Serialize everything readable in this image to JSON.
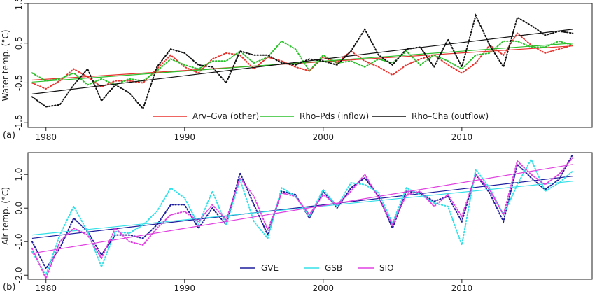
{
  "chart_data": [
    {
      "type": "line",
      "panel_label": "(a)",
      "ylabel": "Water temp. (°C)",
      "xlim": [
        1978.7,
        2019.4
      ],
      "ylim": [
        -1.62,
        1.5
      ],
      "xticks": [
        1980,
        1990,
        2000,
        2010
      ],
      "xtick_labels": [
        "1980",
        "1990",
        "2000",
        "2010"
      ],
      "yticks": [
        -1.5,
        -0.5,
        0.5,
        1.5
      ],
      "ytick_labels": [
        "-1.5",
        "-0.5",
        "0.5",
        "1.5"
      ],
      "legend_position": "bottom",
      "series": [
        {
          "name": "Arv–Gva (other)",
          "color": "#e8322d",
          "x": [
            1979,
            1980,
            1981,
            1982,
            1983,
            1984,
            1985,
            1986,
            1987,
            1988,
            1989,
            1990,
            1991,
            1992,
            1993,
            1994,
            1995,
            1996,
            1997,
            1998,
            1999,
            2000,
            2001,
            2002,
            2003,
            2004,
            2005,
            2006,
            2007,
            2008,
            2009,
            2010,
            2011,
            2012,
            2013,
            2014,
            2015,
            2016,
            2017,
            2018
          ],
          "values": [
            -0.5,
            -0.65,
            -0.45,
            -0.15,
            -0.35,
            -0.6,
            -0.45,
            -0.45,
            -0.5,
            -0.15,
            0.2,
            -0.1,
            -0.25,
            0.1,
            0.25,
            0.2,
            -0.15,
            0.15,
            0.05,
            -0.1,
            -0.2,
            0.15,
            0.0,
            0.3,
            0.05,
            -0.1,
            -0.3,
            -0.05,
            0.1,
            0.2,
            -0.05,
            -0.25,
            0.0,
            0.45,
            0.2,
            0.75,
            0.45,
            0.25,
            0.35,
            0.45
          ],
          "trend": [
            -0.43,
            0.43
          ]
        },
        {
          "name": "Rho–Pds (inflow)",
          "color": "#2cc02c",
          "x": [
            1979,
            1980,
            1981,
            1982,
            1983,
            1984,
            1985,
            1986,
            1987,
            1988,
            1989,
            1990,
            1991,
            1992,
            1993,
            1994,
            1995,
            1996,
            1997,
            1998,
            1999,
            2000,
            2001,
            2002,
            2003,
            2004,
            2005,
            2006,
            2007,
            2008,
            2009,
            2010,
            2011,
            2012,
            2013,
            2014,
            2015,
            2016,
            2017,
            2018
          ],
          "values": [
            -0.25,
            -0.45,
            -0.4,
            -0.25,
            -0.55,
            -0.4,
            -0.55,
            -0.4,
            -0.45,
            -0.2,
            0.1,
            -0.05,
            -0.15,
            0.05,
            0.05,
            0.3,
            0.0,
            0.15,
            0.55,
            0.35,
            -0.2,
            0.2,
            0.0,
            0.05,
            -0.1,
            0.1,
            0.0,
            0.3,
            -0.05,
            0.2,
            0.05,
            -0.15,
            0.2,
            0.25,
            0.55,
            0.55,
            0.4,
            0.4,
            0.55,
            0.45
          ],
          "trend": [
            -0.48,
            0.5
          ]
        },
        {
          "name": "Rho–Cha (outflow)",
          "color": "#111111",
          "x": [
            1979,
            1980,
            1981,
            1982,
            1983,
            1984,
            1985,
            1986,
            1987,
            1988,
            1989,
            1990,
            1991,
            1992,
            1993,
            1994,
            1995,
            1996,
            1997,
            1998,
            1999,
            2000,
            2001,
            2002,
            2003,
            2004,
            2005,
            2006,
            2007,
            2008,
            2009,
            2010,
            2011,
            2012,
            2013,
            2014,
            2015,
            2016,
            2017,
            2018
          ],
          "values": [
            -0.85,
            -1.1,
            -1.05,
            -0.55,
            -0.15,
            -0.95,
            -0.55,
            -0.75,
            -1.15,
            -0.1,
            0.35,
            0.25,
            -0.05,
            -0.1,
            -0.5,
            0.3,
            0.2,
            0.2,
            0.0,
            -0.05,
            0.1,
            0.05,
            -0.05,
            0.3,
            0.85,
            0.2,
            -0.05,
            0.35,
            0.4,
            -0.1,
            0.6,
            -0.1,
            1.2,
            0.45,
            -0.1,
            1.15,
            0.95,
            0.7,
            0.8,
            0.75
          ],
          "trend": [
            -0.78,
            0.85
          ]
        }
      ]
    },
    {
      "type": "line",
      "panel_label": "(b)",
      "ylabel": "Air temp. (°C)",
      "xlim": [
        1978.7,
        2019.4
      ],
      "ylim": [
        -2.12,
        1.65
      ],
      "xticks": [
        1980,
        1990,
        2000,
        2010
      ],
      "xtick_labels": [
        "1980",
        "1990",
        "2000",
        "2010"
      ],
      "yticks": [
        -2.0,
        -1.0,
        0.0,
        1.0
      ],
      "ytick_labels": [
        "-2.0",
        "-1.0",
        "0.0",
        "1.0"
      ],
      "legend_position": "bottom",
      "series": [
        {
          "name": "GVE",
          "color": "#1d1d9e",
          "x": [
            1979,
            1980,
            1981,
            1982,
            1983,
            1984,
            1985,
            1986,
            1987,
            1988,
            1989,
            1990,
            1991,
            1992,
            1993,
            1994,
            1995,
            1996,
            1997,
            1998,
            1999,
            2000,
            2001,
            2002,
            2003,
            2004,
            2005,
            2006,
            2007,
            2008,
            2009,
            2010,
            2011,
            2012,
            2013,
            2014,
            2015,
            2016,
            2017,
            2018
          ],
          "values": [
            -1.0,
            -1.8,
            -1.2,
            -0.3,
            -0.7,
            -1.4,
            -0.8,
            -0.8,
            -0.9,
            -0.5,
            0.1,
            0.1,
            -0.6,
            0.0,
            -0.5,
            1.05,
            0.1,
            -0.8,
            0.5,
            0.4,
            -0.3,
            0.5,
            0.0,
            0.6,
            0.9,
            0.35,
            -0.6,
            0.5,
            0.45,
            0.2,
            0.35,
            -0.4,
            1.0,
            0.45,
            -0.4,
            1.3,
            0.9,
            0.55,
            0.85,
            1.6
          ],
          "trend": [
            -0.9,
            0.95
          ]
        },
        {
          "name": "GSB",
          "color": "#33e0e8",
          "x": [
            1979,
            1980,
            1981,
            1982,
            1983,
            1984,
            1985,
            1986,
            1987,
            1988,
            1989,
            1990,
            1991,
            1992,
            1993,
            1994,
            1995,
            1996,
            1997,
            1998,
            1999,
            2000,
            2001,
            2002,
            2003,
            2004,
            2005,
            2006,
            2007,
            2008,
            2009,
            2010,
            2011,
            2012,
            2013,
            2014,
            2015,
            2016,
            2017,
            2018
          ],
          "values": [
            -1.3,
            -2.0,
            -0.8,
            0.05,
            -0.7,
            -1.75,
            -0.7,
            -0.75,
            -0.5,
            -0.1,
            0.6,
            0.3,
            -0.5,
            0.5,
            -0.5,
            0.85,
            -0.4,
            -0.9,
            0.6,
            0.35,
            -0.25,
            0.55,
            0.05,
            0.75,
            0.7,
            0.45,
            -0.45,
            0.6,
            0.4,
            0.15,
            0.05,
            -1.1,
            1.15,
            0.6,
            -0.2,
            0.7,
            1.45,
            0.5,
            0.75,
            1.1
          ],
          "trend": [
            -0.8,
            0.8
          ]
        },
        {
          "name": "SIO",
          "color": "#e040e0",
          "x": [
            1979,
            1980,
            1981,
            1982,
            1983,
            1984,
            1985,
            1986,
            1987,
            1988,
            1989,
            1990,
            1991,
            1992,
            1993,
            1994,
            1995,
            1996,
            1997,
            1998,
            1999,
            2000,
            2001,
            2002,
            2003,
            2004,
            2005,
            2006,
            2007,
            2008,
            2009,
            2010,
            2011,
            2012,
            2013,
            2014,
            2015,
            2016,
            2017,
            2018
          ],
          "values": [
            -1.2,
            -2.1,
            -1.0,
            -0.6,
            -0.8,
            -1.5,
            -0.6,
            -1.0,
            -1.1,
            -0.6,
            -0.2,
            -0.1,
            -0.4,
            0.1,
            -0.35,
            0.9,
            0.35,
            -0.65,
            0.45,
            0.35,
            -0.2,
            0.4,
            0.1,
            0.5,
            1.0,
            0.3,
            -0.5,
            0.4,
            0.5,
            0.05,
            0.4,
            -0.25,
            1.0,
            0.55,
            -0.2,
            1.4,
            1.0,
            0.7,
            1.0,
            1.5
          ],
          "trend": [
            -1.35,
            1.3
          ]
        }
      ]
    }
  ]
}
